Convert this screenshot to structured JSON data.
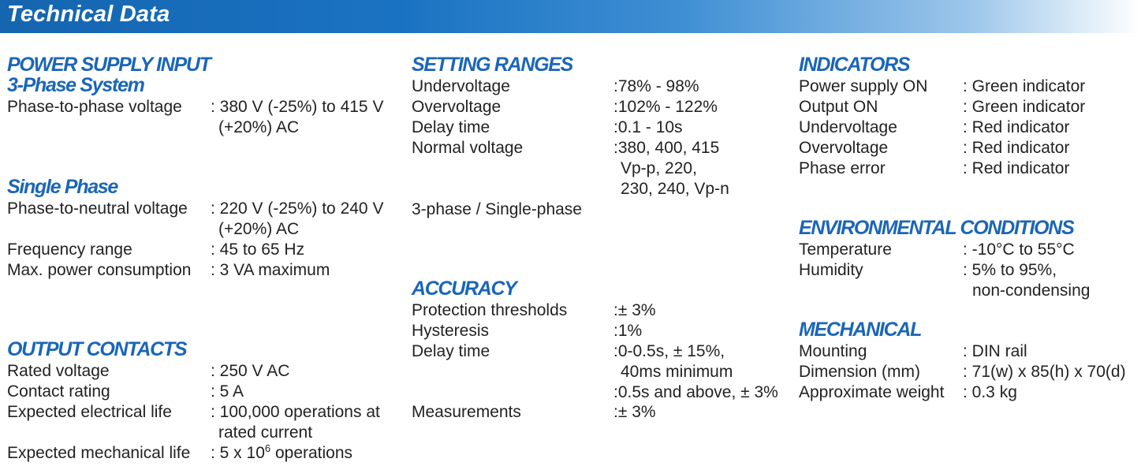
{
  "header": {
    "title": "Technical Data"
  },
  "power_supply_input": {
    "title": "POWER SUPPLY INPUT",
    "three_phase": {
      "title": "3-Phase System",
      "rows": [
        {
          "label": "Phase-to-phase voltage",
          "value": ": 380 V (-25%) to 415 V",
          "value2": "(+20%) AC"
        }
      ]
    },
    "single_phase": {
      "title": "Single Phase",
      "rows": [
        {
          "label": "Phase-to-neutral voltage",
          "value": ": 220 V (-25%) to 240 V",
          "value2": "(+20%) AC"
        },
        {
          "label": "Frequency range",
          "value": ": 45 to 65 Hz"
        },
        {
          "label": "Max. power consumption",
          "value": ": 3 VA maximum"
        }
      ]
    }
  },
  "output_contacts": {
    "title": "OUTPUT CONTACTS",
    "rows": [
      {
        "label": "Rated voltage",
        "value": ": 250 V AC"
      },
      {
        "label": "Contact rating",
        "value": ": 5 A"
      },
      {
        "label": "Expected electrical life",
        "value": ": 100,000 operations at",
        "value2": "rated current"
      },
      {
        "label": "Expected mechanical life",
        "value_prefix": ": 5 x 10",
        "value_sup": "6",
        "value_suffix": " operations"
      }
    ]
  },
  "setting_ranges": {
    "title": "SETTING RANGES",
    "rows": [
      {
        "label": "Undervoltage",
        "value": ":78% - 98%"
      },
      {
        "label": "Overvoltage",
        "value": ":102% - 122%"
      },
      {
        "label": "Delay time",
        "value": ":0.1 - 10s"
      },
      {
        "label": "Normal voltage",
        "value": ":380, 400, 415",
        "value2": "Vp-p, 220,",
        "value3": "230, 240, Vp-n"
      }
    ],
    "note": "3-phase / Single-phase"
  },
  "accuracy": {
    "title": "ACCURACY",
    "rows": [
      {
        "label": "Protection thresholds",
        "value": ":± 3%"
      },
      {
        "label": "Hysteresis",
        "value": ":1%"
      },
      {
        "label": "Delay time",
        "value": ":0-0.5s, ± 15%,",
        "value2": "40ms minimum",
        "value3": ":0.5s and above, ± 3%"
      },
      {
        "label": "Measurements",
        "value": ":± 3%"
      }
    ]
  },
  "indicators": {
    "title": "INDICATORS",
    "rows": [
      {
        "label": "Power supply ON",
        "value": ": Green indicator"
      },
      {
        "label": "Output ON",
        "value": ": Green indicator"
      },
      {
        "label": "Undervoltage",
        "value": ": Red indicator"
      },
      {
        "label": "Overvoltage",
        "value": ": Red indicator"
      },
      {
        "label": "Phase error",
        "value": ": Red indicator"
      }
    ]
  },
  "environmental": {
    "title": "ENVIRONMENTAL CONDITIONS",
    "rows": [
      {
        "label": "Temperature",
        "value": ": -10°C to 55°C"
      },
      {
        "label": "Humidity",
        "value": ": 5% to 95%,",
        "value2": "non-condensing"
      }
    ]
  },
  "mechanical": {
    "title": "MECHANICAL",
    "rows": [
      {
        "label": "Mounting",
        "value": ": DIN rail"
      },
      {
        "label": "Dimension (mm)",
        "value": ": 71(w) x 85(h) x 70(d)"
      },
      {
        "label": "Approximate weight",
        "value": ": 0.3 kg"
      }
    ]
  },
  "colors": {
    "heading_blue": "#1a66b8",
    "banner_blue": "#1565b0",
    "text": "#222222"
  }
}
